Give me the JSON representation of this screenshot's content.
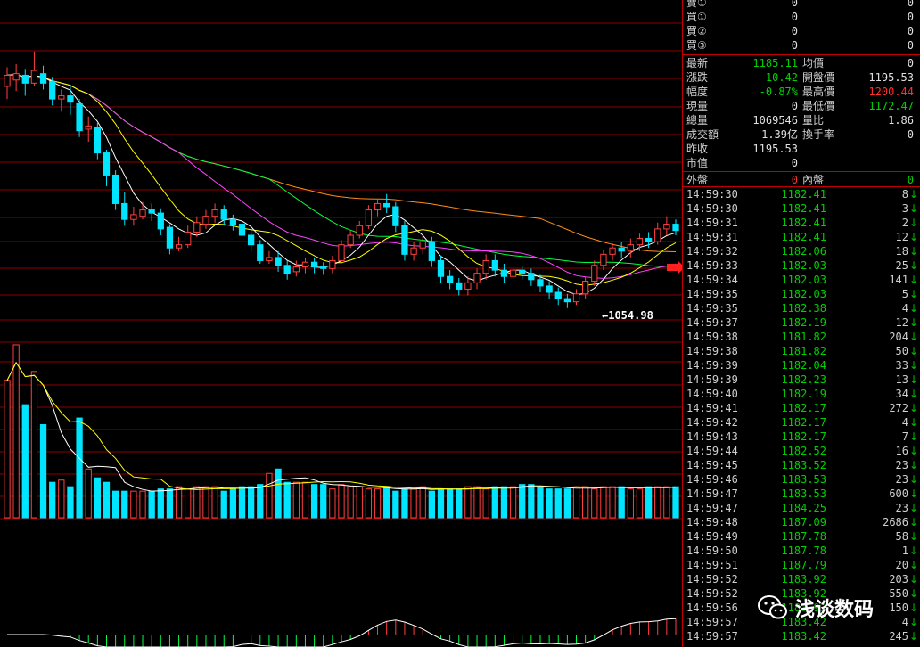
{
  "colors": {
    "up": "#ff4040",
    "down": "#00e5ff",
    "ma5": "#ffffff",
    "ma10": "#ffff00",
    "ma20": "#ff40ff",
    "ma30": "#00ff40",
    "ma60": "#ff8c1a",
    "grid": "#8b0000"
  },
  "low_marker": "1054.98",
  "quote": {
    "sell_rows": [
      {
        "label": "賣①",
        "value": "0",
        "value2": "0"
      },
      {
        "label": "買①",
        "value": "0",
        "value2": "0"
      },
      {
        "label": "買②",
        "value": "0",
        "value2": "0"
      },
      {
        "label": "買③",
        "value": "0",
        "value2": "0"
      }
    ],
    "stats": [
      {
        "l1": "最新",
        "v1": "1185.11",
        "c1": "green",
        "l2": "均價",
        "v2": "0",
        "c2": "white"
      },
      {
        "l1": "漲跌",
        "v1": "-10.42",
        "c1": "green",
        "l2": "開盤價",
        "v2": "1195.53",
        "c2": "white"
      },
      {
        "l1": "幅度",
        "v1": "-0.87%",
        "c1": "green",
        "l2": "最高價",
        "v2": "1200.44",
        "c2": "red"
      },
      {
        "l1": "現量",
        "v1": "0",
        "c1": "white",
        "l2": "最低價",
        "v2": "1172.47",
        "c2": "green"
      },
      {
        "l1": "總量",
        "v1": "1069546",
        "c1": "white",
        "l2": "量比",
        "v2": "1.86",
        "c2": "white"
      },
      {
        "l1": "成交額",
        "v1": "1.39亿",
        "c1": "white",
        "l2": "換手率",
        "v2": "0",
        "c2": "white"
      },
      {
        "l1": "昨收",
        "v1": "1195.53",
        "c1": "white",
        "l2": "",
        "v2": "",
        "c2": "white"
      },
      {
        "l1": "市值",
        "v1": "0",
        "c1": "white",
        "l2": "",
        "v2": "",
        "c2": "white"
      }
    ],
    "outer_label": "外盤",
    "outer_value": "0",
    "inner_label": "內盤",
    "inner_value": "0"
  },
  "ticks": [
    {
      "time": "14:59:30",
      "price": "1182.41",
      "vol": "8"
    },
    {
      "time": "14:59:30",
      "price": "1182.41",
      "vol": "3"
    },
    {
      "time": "14:59:31",
      "price": "1182.41",
      "vol": "2"
    },
    {
      "time": "14:59:31",
      "price": "1182.41",
      "vol": "12"
    },
    {
      "time": "14:59:32",
      "price": "1182.06",
      "vol": "18"
    },
    {
      "time": "14:59:33",
      "price": "1182.03",
      "vol": "25"
    },
    {
      "time": "14:59:34",
      "price": "1182.03",
      "vol": "141"
    },
    {
      "time": "14:59:35",
      "price": "1182.03",
      "vol": "5"
    },
    {
      "time": "14:59:35",
      "price": "1182.38",
      "vol": "4"
    },
    {
      "time": "14:59:37",
      "price": "1182.19",
      "vol": "12"
    },
    {
      "time": "14:59:38",
      "price": "1181.82",
      "vol": "204"
    },
    {
      "time": "14:59:38",
      "price": "1181.82",
      "vol": "50"
    },
    {
      "time": "14:59:39",
      "price": "1182.04",
      "vol": "33"
    },
    {
      "time": "14:59:39",
      "price": "1182.23",
      "vol": "13"
    },
    {
      "time": "14:59:40",
      "price": "1182.19",
      "vol": "34"
    },
    {
      "time": "14:59:41",
      "price": "1182.17",
      "vol": "272"
    },
    {
      "time": "14:59:42",
      "price": "1182.17",
      "vol": "4"
    },
    {
      "time": "14:59:43",
      "price": "1182.17",
      "vol": "7"
    },
    {
      "time": "14:59:44",
      "price": "1182.52",
      "vol": "16"
    },
    {
      "time": "14:59:45",
      "price": "1183.52",
      "vol": "23"
    },
    {
      "time": "14:59:46",
      "price": "1183.53",
      "vol": "23"
    },
    {
      "time": "14:59:47",
      "price": "1183.53",
      "vol": "600"
    },
    {
      "time": "14:59:47",
      "price": "1184.25",
      "vol": "23"
    },
    {
      "time": "14:59:48",
      "price": "1187.09",
      "vol": "2686"
    },
    {
      "time": "14:59:49",
      "price": "1187.78",
      "vol": "58"
    },
    {
      "time": "14:59:50",
      "price": "1187.78",
      "vol": "1"
    },
    {
      "time": "14:59:51",
      "price": "1187.79",
      "vol": "20"
    },
    {
      "time": "14:59:52",
      "price": "1183.92",
      "vol": "203"
    },
    {
      "time": "14:59:52",
      "price": "1183.92",
      "vol": "550"
    },
    {
      "time": "14:59:56",
      "price": "1183.92",
      "vol": "150"
    },
    {
      "time": "14:59:57",
      "price": "1183.42",
      "vol": "4"
    },
    {
      "time": "14:59:57",
      "price": "1183.42",
      "vol": "245"
    }
  ],
  "watermark": "浅谈数码",
  "chart_data": {
    "type": "candlestick",
    "candles": [
      [
        1168,
        1175,
        1160,
        1180
      ],
      [
        1172,
        1176,
        1165,
        1182
      ],
      [
        1175,
        1170,
        1162,
        1179
      ],
      [
        1170,
        1178,
        1168,
        1190
      ],
      [
        1176,
        1170,
        1166,
        1181
      ],
      [
        1171,
        1160,
        1156,
        1174
      ],
      [
        1160,
        1162,
        1152,
        1166
      ],
      [
        1162,
        1158,
        1150,
        1168
      ],
      [
        1157,
        1140,
        1136,
        1160
      ],
      [
        1141,
        1143,
        1133,
        1149
      ],
      [
        1142,
        1126,
        1122,
        1145
      ],
      [
        1126,
        1112,
        1105,
        1128
      ],
      [
        1112,
        1094,
        1090,
        1115
      ],
      [
        1094,
        1084,
        1080,
        1101
      ],
      [
        1084,
        1087,
        1080,
        1092
      ],
      [
        1086,
        1090,
        1084,
        1095
      ],
      [
        1090,
        1088,
        1083,
        1094
      ],
      [
        1088,
        1078,
        1074,
        1091
      ],
      [
        1079,
        1066,
        1062,
        1081
      ],
      [
        1066,
        1068,
        1064,
        1073
      ],
      [
        1068,
        1076,
        1066,
        1080
      ],
      [
        1076,
        1082,
        1073,
        1086
      ],
      [
        1081,
        1086,
        1078,
        1090
      ],
      [
        1086,
        1090,
        1082,
        1094
      ],
      [
        1090,
        1084,
        1080,
        1093
      ],
      [
        1084,
        1081,
        1077,
        1087
      ],
      [
        1081,
        1074,
        1070,
        1085
      ],
      [
        1074,
        1068,
        1064,
        1078
      ],
      [
        1068,
        1058,
        1056,
        1071
      ],
      [
        1058,
        1060,
        1056,
        1064
      ],
      [
        1060,
        1055,
        1051,
        1064
      ],
      [
        1055,
        1050,
        1046,
        1058
      ],
      [
        1051,
        1054,
        1048,
        1058
      ],
      [
        1054,
        1057,
        1050,
        1060
      ],
      [
        1057,
        1054,
        1050,
        1060
      ],
      [
        1054,
        1053,
        1049,
        1057
      ],
      [
        1053,
        1058,
        1050,
        1061
      ],
      [
        1058,
        1068,
        1056,
        1071
      ],
      [
        1068,
        1074,
        1066,
        1077
      ],
      [
        1074,
        1080,
        1072,
        1083
      ],
      [
        1080,
        1090,
        1078,
        1093
      ],
      [
        1090,
        1094,
        1086,
        1097
      ],
      [
        1094,
        1092,
        1088,
        1100
      ],
      [
        1092,
        1080,
        1076,
        1095
      ],
      [
        1080,
        1062,
        1058,
        1083
      ],
      [
        1062,
        1066,
        1058,
        1070
      ],
      [
        1066,
        1070,
        1062,
        1074
      ],
      [
        1070,
        1058,
        1054,
        1073
      ],
      [
        1058,
        1048,
        1044,
        1061
      ],
      [
        1048,
        1044,
        1040,
        1052
      ],
      [
        1044,
        1040,
        1036,
        1047
      ],
      [
        1040,
        1044,
        1036,
        1048
      ],
      [
        1044,
        1050,
        1040,
        1053
      ],
      [
        1050,
        1058,
        1046,
        1062
      ],
      [
        1058,
        1052,
        1048,
        1062
      ],
      [
        1052,
        1048,
        1044,
        1056
      ],
      [
        1048,
        1052,
        1044,
        1055
      ],
      [
        1052,
        1050,
        1046,
        1055
      ],
      [
        1050,
        1046,
        1042,
        1053
      ],
      [
        1046,
        1042,
        1038,
        1049
      ],
      [
        1042,
        1038,
        1034,
        1045
      ],
      [
        1038,
        1034,
        1030,
        1041
      ],
      [
        1034,
        1032,
        1028,
        1037
      ],
      [
        1032,
        1037,
        1030,
        1040
      ],
      [
        1037,
        1045,
        1034,
        1048
      ],
      [
        1045,
        1055,
        1042,
        1058
      ],
      [
        1055,
        1062,
        1052,
        1065
      ],
      [
        1062,
        1066,
        1058,
        1069
      ],
      [
        1066,
        1064,
        1060,
        1070
      ],
      [
        1064,
        1068,
        1060,
        1072
      ],
      [
        1068,
        1072,
        1064,
        1075
      ],
      [
        1072,
        1070,
        1066,
        1076
      ],
      [
        1070,
        1078,
        1068,
        1082
      ],
      [
        1078,
        1081,
        1074,
        1086
      ],
      [
        1081,
        1077,
        1074,
        1084
      ]
    ],
    "volume": [
      62,
      78,
      51,
      66,
      42,
      16,
      17,
      14,
      45,
      22,
      18,
      16,
      12,
      12,
      12,
      12,
      12,
      13,
      13,
      14,
      13,
      14,
      14,
      14,
      12,
      13,
      14,
      14,
      15,
      20,
      22,
      16,
      16,
      16,
      15,
      15,
      13,
      15,
      14,
      14,
      13,
      13,
      14,
      12,
      13,
      13,
      14,
      12,
      13,
      13,
      13,
      14,
      14,
      13,
      14,
      14,
      14,
      15,
      15,
      14,
      13,
      13,
      13,
      14,
      14,
      13,
      14,
      14,
      14,
      13,
      13,
      14,
      14,
      14,
      14
    ],
    "ylim": [
      1020,
      1200
    ]
  }
}
